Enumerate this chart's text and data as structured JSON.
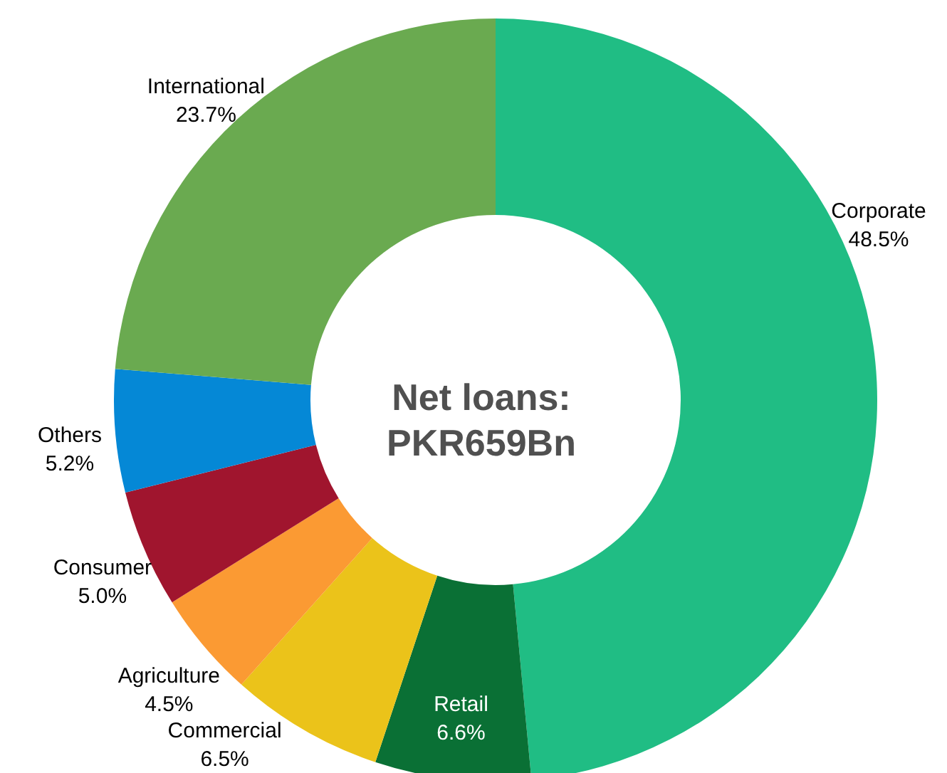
{
  "chart_data": {
    "type": "donut",
    "categories": [
      "Corporate",
      "Retail",
      "Commercial",
      "Agriculture",
      "Consumer",
      "Others",
      "International"
    ],
    "values": [
      48.5,
      6.6,
      6.5,
      4.5,
      5.0,
      5.2,
      23.7
    ],
    "colors": [
      "#20bd84",
      "#0a7035",
      "#ebc31a",
      "#fb9a33",
      "#a0152e",
      "#0588d6",
      "#6aaa50"
    ],
    "value_labels": [
      "48.5%",
      "6.6%",
      "6.5%",
      "4.5%",
      "5.0%",
      "5.2%",
      "23.7%"
    ],
    "annotations": [
      "Net loans:",
      "PKR659Bn"
    ]
  }
}
